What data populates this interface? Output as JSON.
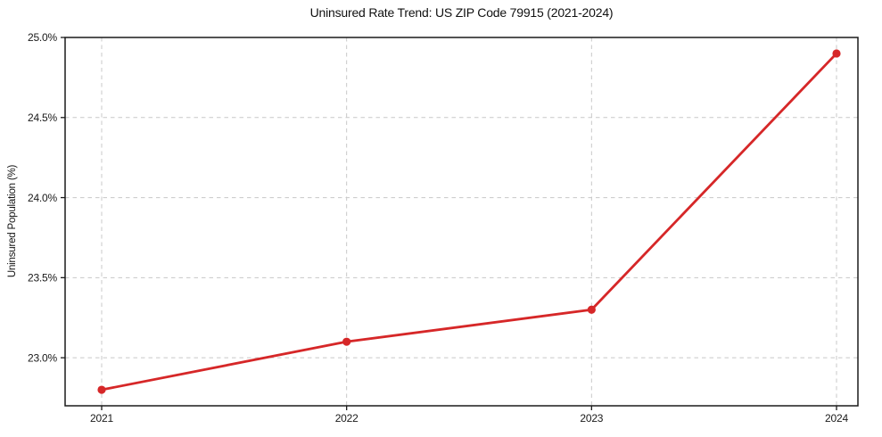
{
  "chart_data": {
    "type": "line",
    "title": "Uninsured Rate Trend: US ZIP Code 79915 (2021-2024)",
    "xlabel": "",
    "ylabel": "Uninsured Population (%)",
    "categories": [
      "2021",
      "2022",
      "2023",
      "2024"
    ],
    "series": [
      {
        "name": "uninsured-rate",
        "values": [
          22.8,
          23.1,
          23.3,
          24.9
        ],
        "color": "#d62728",
        "marker": "circle"
      }
    ],
    "yticks": [
      23.0,
      23.5,
      24.0,
      24.5,
      25.0
    ],
    "ytick_labels": [
      "23.0%",
      "23.5%",
      "24.0%",
      "24.5%",
      "25.0%"
    ],
    "ylim": [
      22.7,
      25.0
    ],
    "grid": true,
    "grid_style": "dashed",
    "legend_position": "none",
    "colors": {
      "line": "#d62728",
      "marker": "#d62728",
      "grid": "#c8c8c8",
      "spine": "#1a1a1a",
      "tick": "#1a1a1a",
      "background": "#ffffff"
    }
  }
}
